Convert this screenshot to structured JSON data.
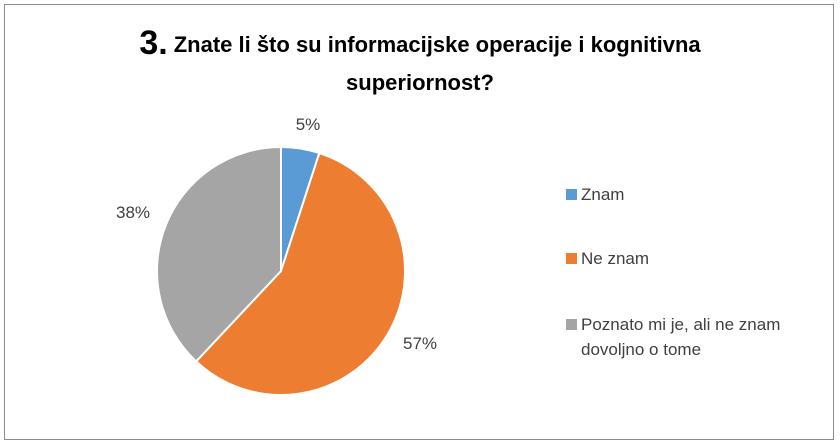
{
  "chart_data": {
    "type": "pie",
    "title_number": "3.",
    "title_line1": "Znate li što su informacijske operacije i  kognitivna",
    "title_line2": "superiornost?",
    "categories": [
      "Znam",
      "Ne znam",
      "Poznato mi je, ali ne znam dovoljno o tome"
    ],
    "values": [
      5,
      57,
      38
    ],
    "data_labels": [
      "5%",
      "57%",
      "38%"
    ],
    "colors": [
      "#5b9bd5",
      "#ed7d31",
      "#a5a5a5"
    ],
    "legend_position": "right"
  }
}
